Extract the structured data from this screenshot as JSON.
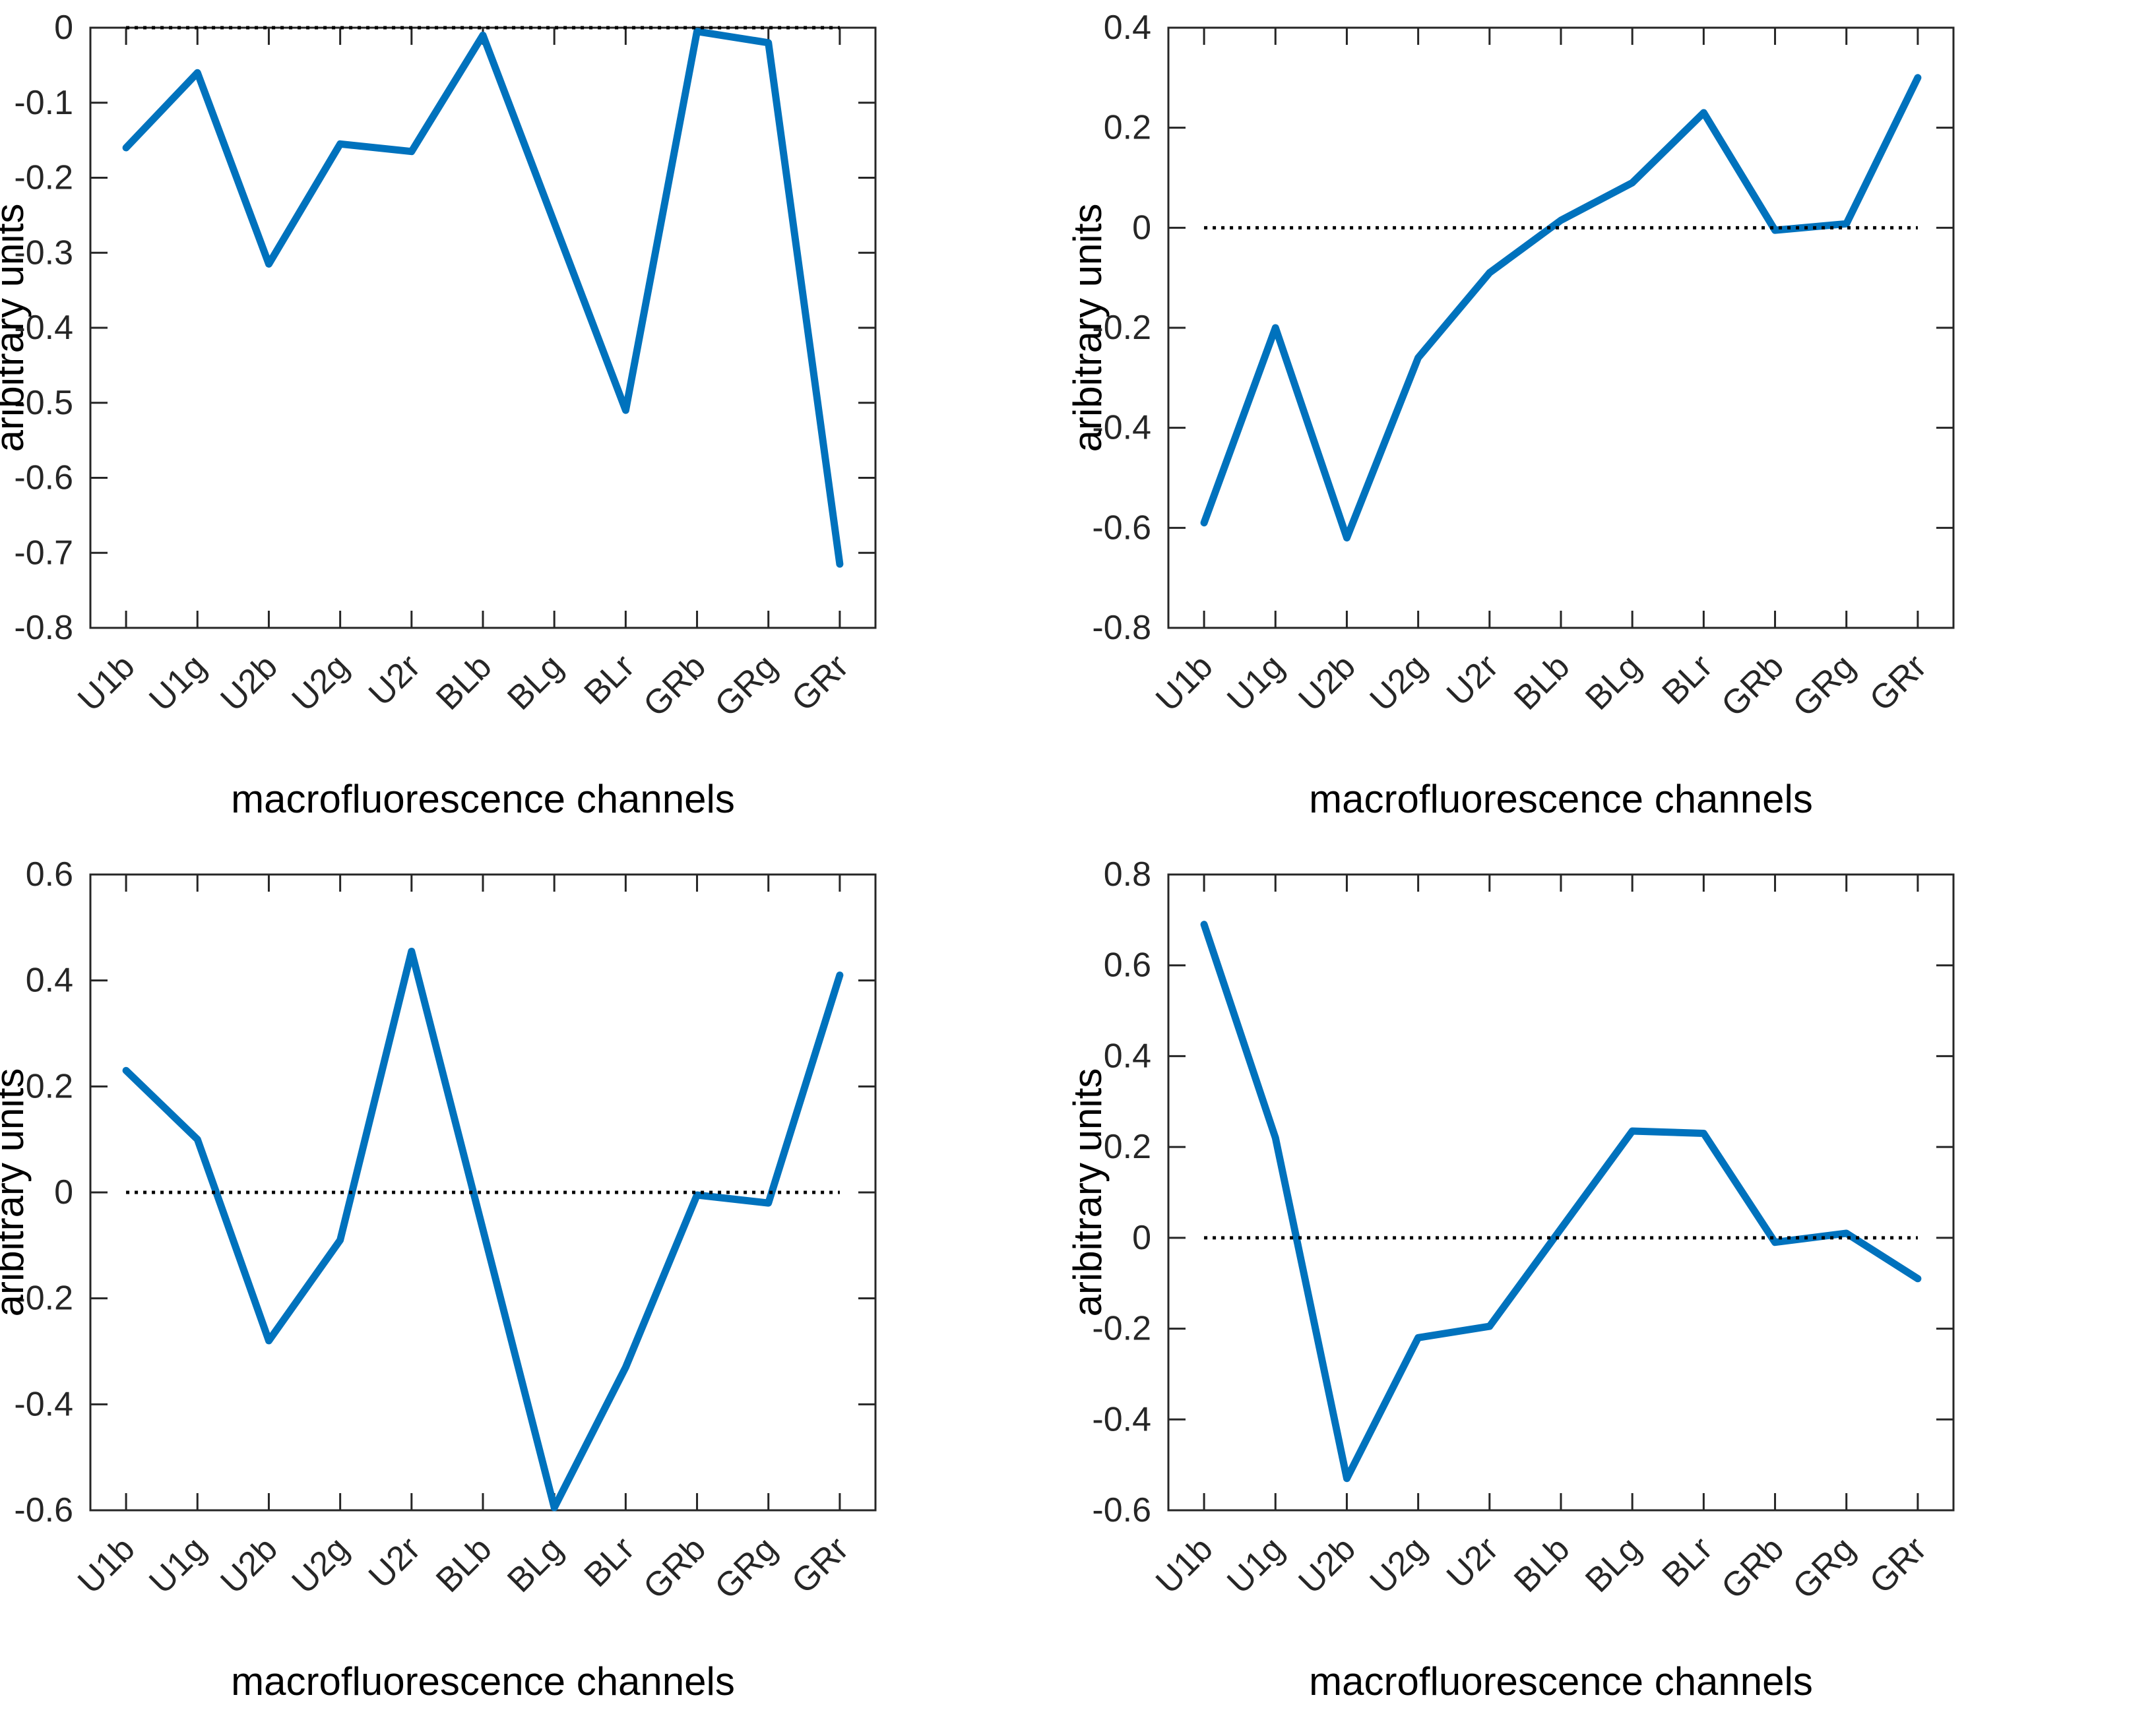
{
  "style": {
    "background_color": "#ffffff",
    "line_color": "#0072BD",
    "zero_line_color": "#000000",
    "axis_color": "#262626",
    "tick_label_color": "#262626",
    "axis_label_color": "#000000"
  },
  "shared": {
    "xlabel": "macrofluorescence channels",
    "ylabel": "aribitrary units",
    "categories": [
      "U1b",
      "U1g",
      "U2b",
      "U2g",
      "U2r",
      "BLb",
      "BLg",
      "BLr",
      "GRb",
      "GRg",
      "GRr"
    ]
  },
  "chart_data": [
    {
      "id": "top-left",
      "type": "line",
      "title": "",
      "xlabel": "macrofluorescence channels",
      "ylabel": "aribitrary units",
      "categories": [
        "U1b",
        "U1g",
        "U2b",
        "U2g",
        "U2r",
        "BLb",
        "BLg",
        "BLr",
        "GRb",
        "GRg",
        "GRr"
      ],
      "values": [
        -0.16,
        -0.06,
        -0.315,
        -0.155,
        -0.165,
        -0.01,
        -0.26,
        -0.51,
        -0.005,
        -0.02,
        -0.715
      ],
      "ylim": [
        -0.8,
        0
      ],
      "yticks": [
        0,
        -0.1,
        -0.2,
        -0.3,
        -0.4,
        -0.5,
        -0.6,
        -0.7,
        -0.8
      ],
      "ytick_labels": [
        "0",
        "-0.1",
        "-0.2",
        "-0.3",
        "-0.4",
        "-0.5",
        "-0.6",
        "-0.7",
        "-0.8"
      ],
      "zero_line": true,
      "grid": false,
      "legend": null
    },
    {
      "id": "top-right",
      "type": "line",
      "title": "",
      "xlabel": "macrofluorescence channels",
      "ylabel": "aribitrary units",
      "categories": [
        "U1b",
        "U1g",
        "U2b",
        "U2g",
        "U2r",
        "BLb",
        "BLg",
        "BLr",
        "GRb",
        "GRg",
        "GRr"
      ],
      "values": [
        -0.59,
        -0.2,
        -0.62,
        -0.26,
        -0.09,
        0.015,
        0.09,
        0.23,
        -0.005,
        0.008,
        0.3
      ],
      "ylim": [
        -0.8,
        0.4
      ],
      "yticks": [
        0.4,
        0.2,
        0,
        -0.2,
        -0.4,
        -0.6,
        -0.8
      ],
      "ytick_labels": [
        "0.4",
        "0.2",
        "0",
        "-0.2",
        "-0.4",
        "-0.6",
        "-0.8"
      ],
      "zero_line": true,
      "grid": false,
      "legend": null
    },
    {
      "id": "bottom-left",
      "type": "line",
      "title": "",
      "xlabel": "macrofluorescence channels",
      "ylabel": "aribitrary units",
      "categories": [
        "U1b",
        "U1g",
        "U2b",
        "U2g",
        "U2r",
        "BLb",
        "BLg",
        "BLr",
        "GRb",
        "GRg",
        "GRr"
      ],
      "values": [
        0.23,
        0.1,
        -0.28,
        -0.09,
        0.455,
        -0.07,
        -0.595,
        -0.33,
        -0.005,
        -0.02,
        0.41
      ],
      "ylim": [
        -0.6,
        0.6
      ],
      "yticks": [
        0.6,
        0.4,
        0.2,
        0,
        -0.2,
        -0.4,
        -0.6
      ],
      "ytick_labels": [
        "0.6",
        "0.4",
        "0.2",
        "0",
        "-0.2",
        "-0.4",
        "-0.6"
      ],
      "zero_line": true,
      "grid": false,
      "legend": null
    },
    {
      "id": "bottom-right",
      "type": "line",
      "title": "",
      "xlabel": "macrofluorescence channels",
      "ylabel": "aribitrary units",
      "categories": [
        "U1b",
        "U1g",
        "U2b",
        "U2g",
        "U2r",
        "BLb",
        "BLg",
        "BLr",
        "GRb",
        "GRg",
        "GRr"
      ],
      "values": [
        0.69,
        0.22,
        -0.53,
        -0.22,
        -0.195,
        0.02,
        0.235,
        0.23,
        -0.01,
        0.01,
        -0.09
      ],
      "ylim": [
        -0.6,
        0.8
      ],
      "yticks": [
        0.8,
        0.6,
        0.4,
        0.2,
        0,
        -0.2,
        -0.4,
        -0.6
      ],
      "ytick_labels": [
        "0.8",
        "0.6",
        "0.4",
        "0.2",
        "0",
        "-0.2",
        "-0.4",
        "-0.6"
      ],
      "zero_line": true,
      "grid": false,
      "legend": null
    }
  ]
}
